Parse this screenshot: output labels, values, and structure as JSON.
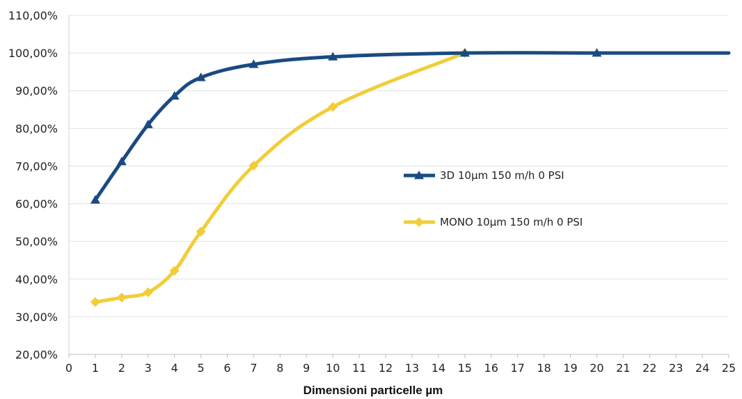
{
  "chart_data": {
    "type": "line",
    "xlabel": "Dimensioni particelle µm",
    "ylabel": "",
    "xlim": [
      0,
      25
    ],
    "ylim": [
      20,
      110
    ],
    "x_ticks": [
      "0",
      "1",
      "2",
      "3",
      "4",
      "5",
      "6",
      "7",
      "8",
      "9",
      "10",
      "11",
      "12",
      "13",
      "14",
      "15",
      "16",
      "17",
      "18",
      "19",
      "20",
      "21",
      "22",
      "23",
      "24",
      "25"
    ],
    "y_ticks": [
      "20,00%",
      "30,00%",
      "40,00%",
      "50,00%",
      "60,00%",
      "70,00%",
      "80,00%",
      "90,00%",
      "100,00%",
      "110,00%"
    ],
    "grid": "horizontal",
    "legend_position": "right-center",
    "series": [
      {
        "name": "3D 10µm  150 m/h  0 PSI",
        "color": "#1a4a82",
        "marker": "triangle",
        "x": [
          1,
          2,
          3,
          4,
          5,
          7,
          10,
          15,
          20,
          25
        ],
        "y": [
          61,
          71.2,
          81,
          88.6,
          93.5,
          97,
          99,
          100,
          100,
          100
        ],
        "markers_on": [
          true,
          true,
          true,
          true,
          true,
          true,
          true,
          true,
          true,
          false
        ]
      },
      {
        "name": "MONO  10µm 150 m/h  0 PSI",
        "color": "#f2cd37",
        "marker": "diamond",
        "x": [
          1,
          2,
          3,
          4,
          5,
          7,
          10,
          15
        ],
        "y": [
          33.9,
          35.1,
          36.5,
          42.2,
          52.6,
          70.1,
          85.7,
          100
        ],
        "markers_on": [
          true,
          true,
          true,
          true,
          true,
          true,
          true,
          true
        ]
      }
    ]
  }
}
